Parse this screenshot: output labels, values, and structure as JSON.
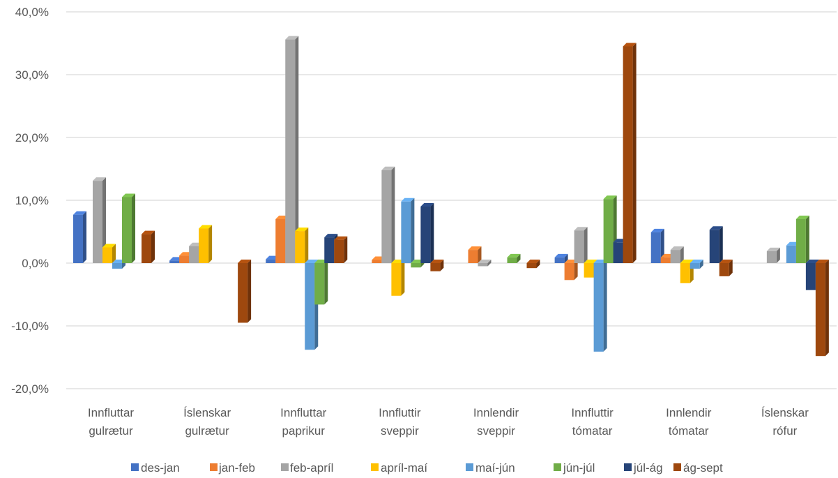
{
  "chart_data": {
    "type": "bar",
    "style": "3d-clustered-column",
    "categories": [
      [
        "Innfluttar",
        "gulrætur"
      ],
      [
        "Íslenskar",
        "gulrætur"
      ],
      [
        "Innfluttar",
        "paprikur"
      ],
      [
        "Innfluttir",
        "sveppir"
      ],
      [
        "Innlendir",
        "sveppir"
      ],
      [
        "Innfluttir",
        "tómatar"
      ],
      [
        "Innlendir",
        "tómatar"
      ],
      [
        "Íslenskar",
        "rófur"
      ]
    ],
    "series": [
      {
        "name": "des-jan",
        "color": "#4472C4",
        "values": [
          7.7,
          0.4,
          0.6,
          0.0,
          0.0,
          0.9,
          4.9,
          0.0
        ]
      },
      {
        "name": "jan-feb",
        "color": "#ED7D31",
        "values": [
          0.0,
          1.2,
          7.0,
          0.5,
          2.1,
          -2.7,
          0.9,
          0.0
        ]
      },
      {
        "name": "feb-apríl",
        "color": "#A5A5A5",
        "values": [
          13.1,
          2.7,
          35.6,
          14.8,
          -0.5,
          5.2,
          2.1,
          1.9
        ]
      },
      {
        "name": "apríl-maí",
        "color": "#FFC000",
        "values": [
          2.5,
          5.5,
          5.1,
          -5.2,
          0.0,
          -2.3,
          -3.2,
          0.0
        ]
      },
      {
        "name": "maí-jún",
        "color": "#5B9BD5",
        "values": [
          -0.9,
          0.0,
          -13.8,
          9.8,
          0.0,
          -14.1,
          -0.9,
          2.8
        ]
      },
      {
        "name": "jún-júl",
        "color": "#70AD47",
        "values": [
          10.5,
          0.0,
          -6.6,
          -0.7,
          0.9,
          10.2,
          0.0,
          7.0
        ]
      },
      {
        "name": "júl-ág",
        "color": "#264478",
        "values": [
          0.0,
          0.0,
          4.1,
          9.0,
          0.0,
          3.3,
          5.3,
          -4.3
        ]
      },
      {
        "name": "ág-sept",
        "color": "#9E480E",
        "values": [
          4.6,
          -9.5,
          3.7,
          -1.3,
          -0.8,
          34.5,
          -2.1,
          -14.8
        ]
      }
    ],
    "ylim": [
      -20,
      40
    ],
    "yticks": [
      -20,
      -10,
      0,
      10,
      20,
      30,
      40
    ],
    "ytick_labels": [
      "-20,0%",
      "-10,0%",
      "0,0%",
      "10,0%",
      "20,0%",
      "30,0%",
      "40,0%"
    ],
    "grid": true,
    "legend_position": "bottom",
    "title": "",
    "xlabel": "",
    "ylabel": ""
  }
}
